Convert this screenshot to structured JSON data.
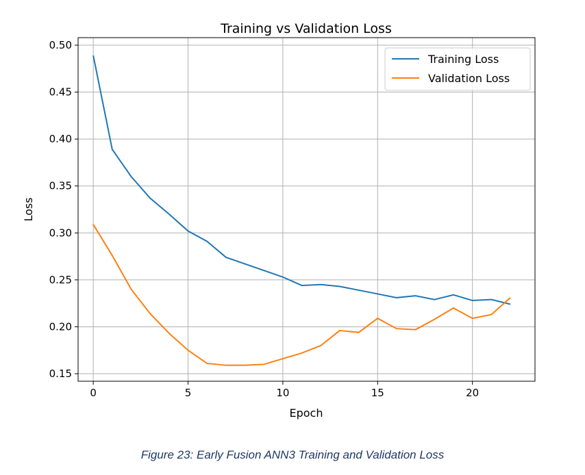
{
  "chart_data": {
    "type": "line",
    "title": "Training vs Validation Loss",
    "xlabel": "Epoch",
    "ylabel": "Loss",
    "xlim": [
      -0.8,
      23.3
    ],
    "ylim": [
      0.142,
      0.508
    ],
    "xticks": [
      0,
      5,
      10,
      15,
      20
    ],
    "yticks": [
      0.15,
      0.2,
      0.25,
      0.3,
      0.35,
      0.4,
      0.45,
      0.5
    ],
    "ytick_labels": [
      "0.15",
      "0.20",
      "0.25",
      "0.30",
      "0.35",
      "0.40",
      "0.45",
      "0.50"
    ],
    "grid": true,
    "legend_position": "top-right",
    "x": [
      0,
      1,
      2,
      3,
      4,
      5,
      6,
      7,
      8,
      9,
      10,
      11,
      12,
      13,
      14,
      15,
      16,
      17,
      18,
      19,
      20,
      21,
      22
    ],
    "series": [
      {
        "name": "Training Loss",
        "color": "#1f77b4",
        "values": [
          0.489,
          0.389,
          0.36,
          0.337,
          0.32,
          0.302,
          0.291,
          0.274,
          0.267,
          0.26,
          0.253,
          0.244,
          0.245,
          0.243,
          0.239,
          0.235,
          0.231,
          0.233,
          0.229,
          0.234,
          0.228,
          0.229,
          0.224
        ]
      },
      {
        "name": "Validation Loss",
        "color": "#ff7f0e",
        "values": [
          0.309,
          0.276,
          0.24,
          0.214,
          0.193,
          0.175,
          0.161,
          0.159,
          0.159,
          0.16,
          0.166,
          0.172,
          0.18,
          0.196,
          0.194,
          0.209,
          0.198,
          0.197,
          0.208,
          0.22,
          0.209,
          0.213,
          0.231
        ]
      }
    ]
  },
  "caption": "Figure 23: Early Fusion ANN3 Training and Validation Loss"
}
